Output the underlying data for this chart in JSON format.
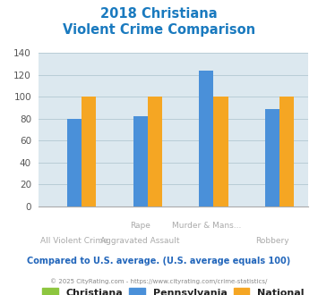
{
  "title_line1": "2018 Christiana",
  "title_line2": "Violent Crime Comparison",
  "title_color": "#1a7abf",
  "group_labels_row1": [
    "",
    "Rape",
    "Murder & Mans...",
    ""
  ],
  "group_labels_row2": [
    "All Violent Crime",
    "Aggravated Assault",
    "",
    "Robbery"
  ],
  "christiana": [
    0,
    0,
    0,
    0
  ],
  "pennsylvania": [
    80,
    82,
    124,
    89
  ],
  "national": [
    100,
    100,
    100,
    100
  ],
  "christiana_color": "#8dc63f",
  "pennsylvania_color": "#4a90d9",
  "national_color": "#f5a623",
  "ylim": [
    0,
    140
  ],
  "yticks": [
    0,
    20,
    40,
    60,
    80,
    100,
    120,
    140
  ],
  "plot_bg": "#dce8ef",
  "legend_labels": [
    "Christiana",
    "Pennsylvania",
    "National"
  ],
  "footer_text": "Compared to U.S. average. (U.S. average equals 100)",
  "footer_color": "#2266bb",
  "credit_text": "© 2025 CityRating.com - https://www.cityrating.com/crime-statistics/",
  "credit_color": "#888888",
  "bar_width": 0.22,
  "grid_color": "#b8cdd6"
}
